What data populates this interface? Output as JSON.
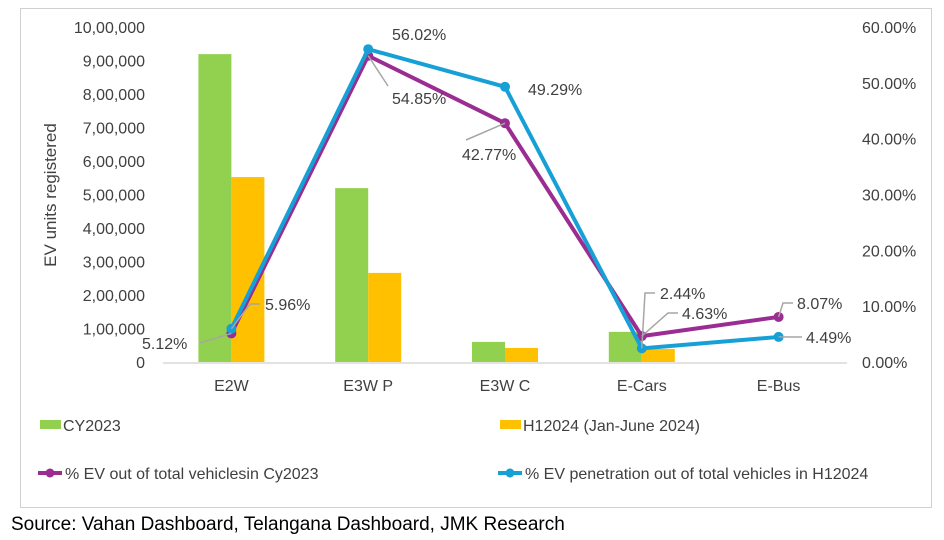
{
  "chart_data": {
    "type": "bar+line",
    "categories": [
      "E2W",
      "E3W P",
      "E3W C",
      "E-Cars",
      "E-Bus"
    ],
    "ylabel": "EV units registered",
    "ylim": [
      0,
      1000000
    ],
    "y_ticks": [
      "0",
      "1,00,000",
      "2,00,000",
      "3,00,000",
      "4,00,000",
      "5,00,000",
      "6,00,000",
      "7,00,000",
      "8,00,000",
      "9,00,000",
      "10,00,000"
    ],
    "y2lim": [
      0,
      60
    ],
    "y2_ticks": [
      "0.00%",
      "10.00%",
      "20.00%",
      "30.00%",
      "40.00%",
      "50.00%",
      "60.00%"
    ],
    "grid": false,
    "legend_placement": "bottom",
    "bar_series": [
      {
        "name": "CY2023",
        "color": "#92d050",
        "values": [
          919000,
          519000,
          60000,
          90000,
          0
        ]
      },
      {
        "name": "H12024 (Jan-June 2024)",
        "color": "#ffc000",
        "values": [
          552000,
          266000,
          42000,
          39000,
          0
        ]
      }
    ],
    "line_series": [
      {
        "name": "% EV out of total vehiclesin Cy2023",
        "color": "#9b2c91",
        "values": [
          5.12,
          54.85,
          42.77,
          4.63,
          8.07
        ],
        "labels": [
          "5.12%",
          "54.85%",
          "42.77%",
          "4.63%",
          "8.07%"
        ]
      },
      {
        "name": "% EV penetration out of total vehicles in H12024",
        "color": "#17a0d6",
        "values": [
          5.96,
          56.02,
          49.29,
          2.44,
          4.49
        ],
        "labels": [
          "5.96%",
          "56.02%",
          "49.29%",
          "2.44%",
          "4.49%"
        ]
      }
    ]
  },
  "source": "Source: Vahan Dashboard, Telangana Dashboard, JMK Research"
}
